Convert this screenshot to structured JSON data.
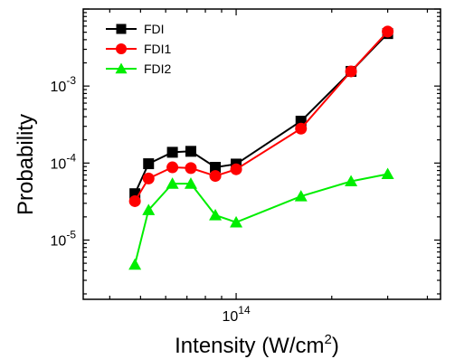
{
  "chart_data": {
    "type": "line",
    "title": "",
    "xlabel_main": "Intensity (W/cm",
    "xlabel_sup": "2",
    "xlabel_close": ")",
    "ylabel": "Probability",
    "xscale": "log",
    "yscale": "log",
    "xlim": [
      33000000000000.0,
      440000000000000.0
    ],
    "ylim": [
      1.7e-06,
      0.01
    ],
    "x_tick_labels": [
      {
        "base": "10",
        "exp": "14",
        "value": 100000000000000.0
      }
    ],
    "y_tick_labels": [
      {
        "base": "10",
        "exp": "-3",
        "value": 0.001
      },
      {
        "base": "10",
        "exp": "-4",
        "value": 0.0001
      },
      {
        "base": "10",
        "exp": "-5",
        "value": 1e-05
      }
    ],
    "legend_position": "top-left",
    "series": [
      {
        "name": "FDI",
        "color": "#000000",
        "marker": "square",
        "x": [
          48000000000000.0,
          53000000000000.0,
          63000000000000.0,
          72000000000000.0,
          86000000000000.0,
          100000000000000.0,
          160000000000000.0,
          230000000000000.0,
          300000000000000.0
        ],
        "y": [
          4e-05,
          9.8e-05,
          0.000138,
          0.000142,
          8.8e-05,
          9.7e-05,
          0.00035,
          0.00155,
          0.0048
        ]
      },
      {
        "name": "FDI1",
        "color": "#ff0000",
        "marker": "circle",
        "x": [
          48000000000000.0,
          53000000000000.0,
          63000000000000.0,
          72000000000000.0,
          86000000000000.0,
          100000000000000.0,
          160000000000000.0,
          230000000000000.0,
          300000000000000.0
        ],
        "y": [
          3.2e-05,
          6.3e-05,
          8.8e-05,
          8.6e-05,
          6.8e-05,
          8.3e-05,
          0.00028,
          0.00155,
          0.0051
        ]
      },
      {
        "name": "FDI2",
        "color": "#00ee00",
        "marker": "triangle",
        "x": [
          48000000000000.0,
          53000000000000.0,
          63000000000000.0,
          72000000000000.0,
          86000000000000.0,
          100000000000000.0,
          160000000000000.0,
          230000000000000.0,
          300000000000000.0
        ],
        "y": [
          4.8e-06,
          2.45e-05,
          5.4e-05,
          5.4e-05,
          2.1e-05,
          1.7e-05,
          3.7e-05,
          5.8e-05,
          7.2e-05
        ]
      }
    ]
  }
}
